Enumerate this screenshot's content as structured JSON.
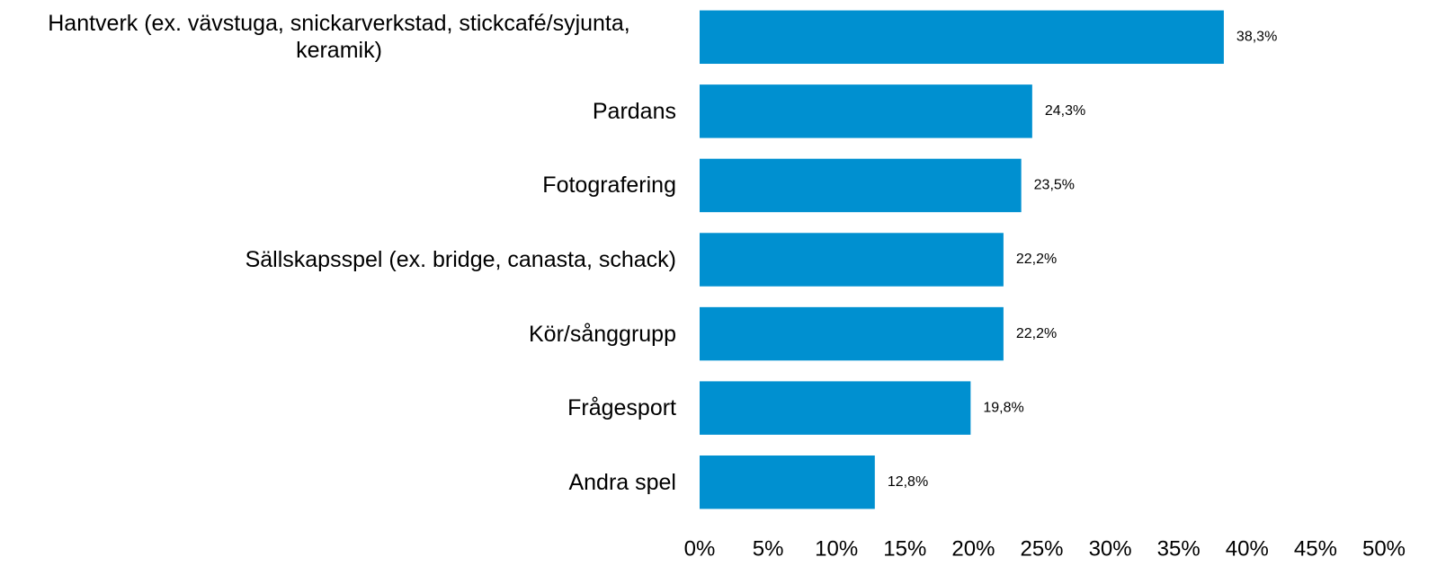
{
  "chart_data": {
    "type": "bar",
    "orientation": "horizontal",
    "categories": [
      "Hantverk (ex. vävstuga, snickarverkstad, stickcafé/syjunta, keramik)",
      "Pardans",
      "Fotografering",
      "Sällskapsspel (ex. bridge, canasta, schack)",
      "Kör/sånggrupp",
      "Frågesport",
      "Andra spel"
    ],
    "values": [
      38.3,
      24.3,
      23.5,
      22.2,
      22.2,
      19.8,
      12.8
    ],
    "value_labels": [
      "38,3%",
      "24,3%",
      "23,5%",
      "22,2%",
      "22,2%",
      "19,8%",
      "12,8%"
    ],
    "color": "#0090d0",
    "xlim": [
      0,
      50
    ],
    "xticks": [
      {
        "value": 0,
        "label": "0%"
      },
      {
        "value": 5,
        "label": "5%"
      },
      {
        "value": 10,
        "label": "10%"
      },
      {
        "value": 15,
        "label": "15%"
      },
      {
        "value": 20,
        "label": "20%"
      },
      {
        "value": 25,
        "label": "25%"
      },
      {
        "value": 30,
        "label": "30%"
      },
      {
        "value": 35,
        "label": "35%"
      },
      {
        "value": 40,
        "label": "40%"
      },
      {
        "value": 45,
        "label": "45%"
      },
      {
        "value": 50,
        "label": "50%"
      }
    ],
    "grid": false
  }
}
